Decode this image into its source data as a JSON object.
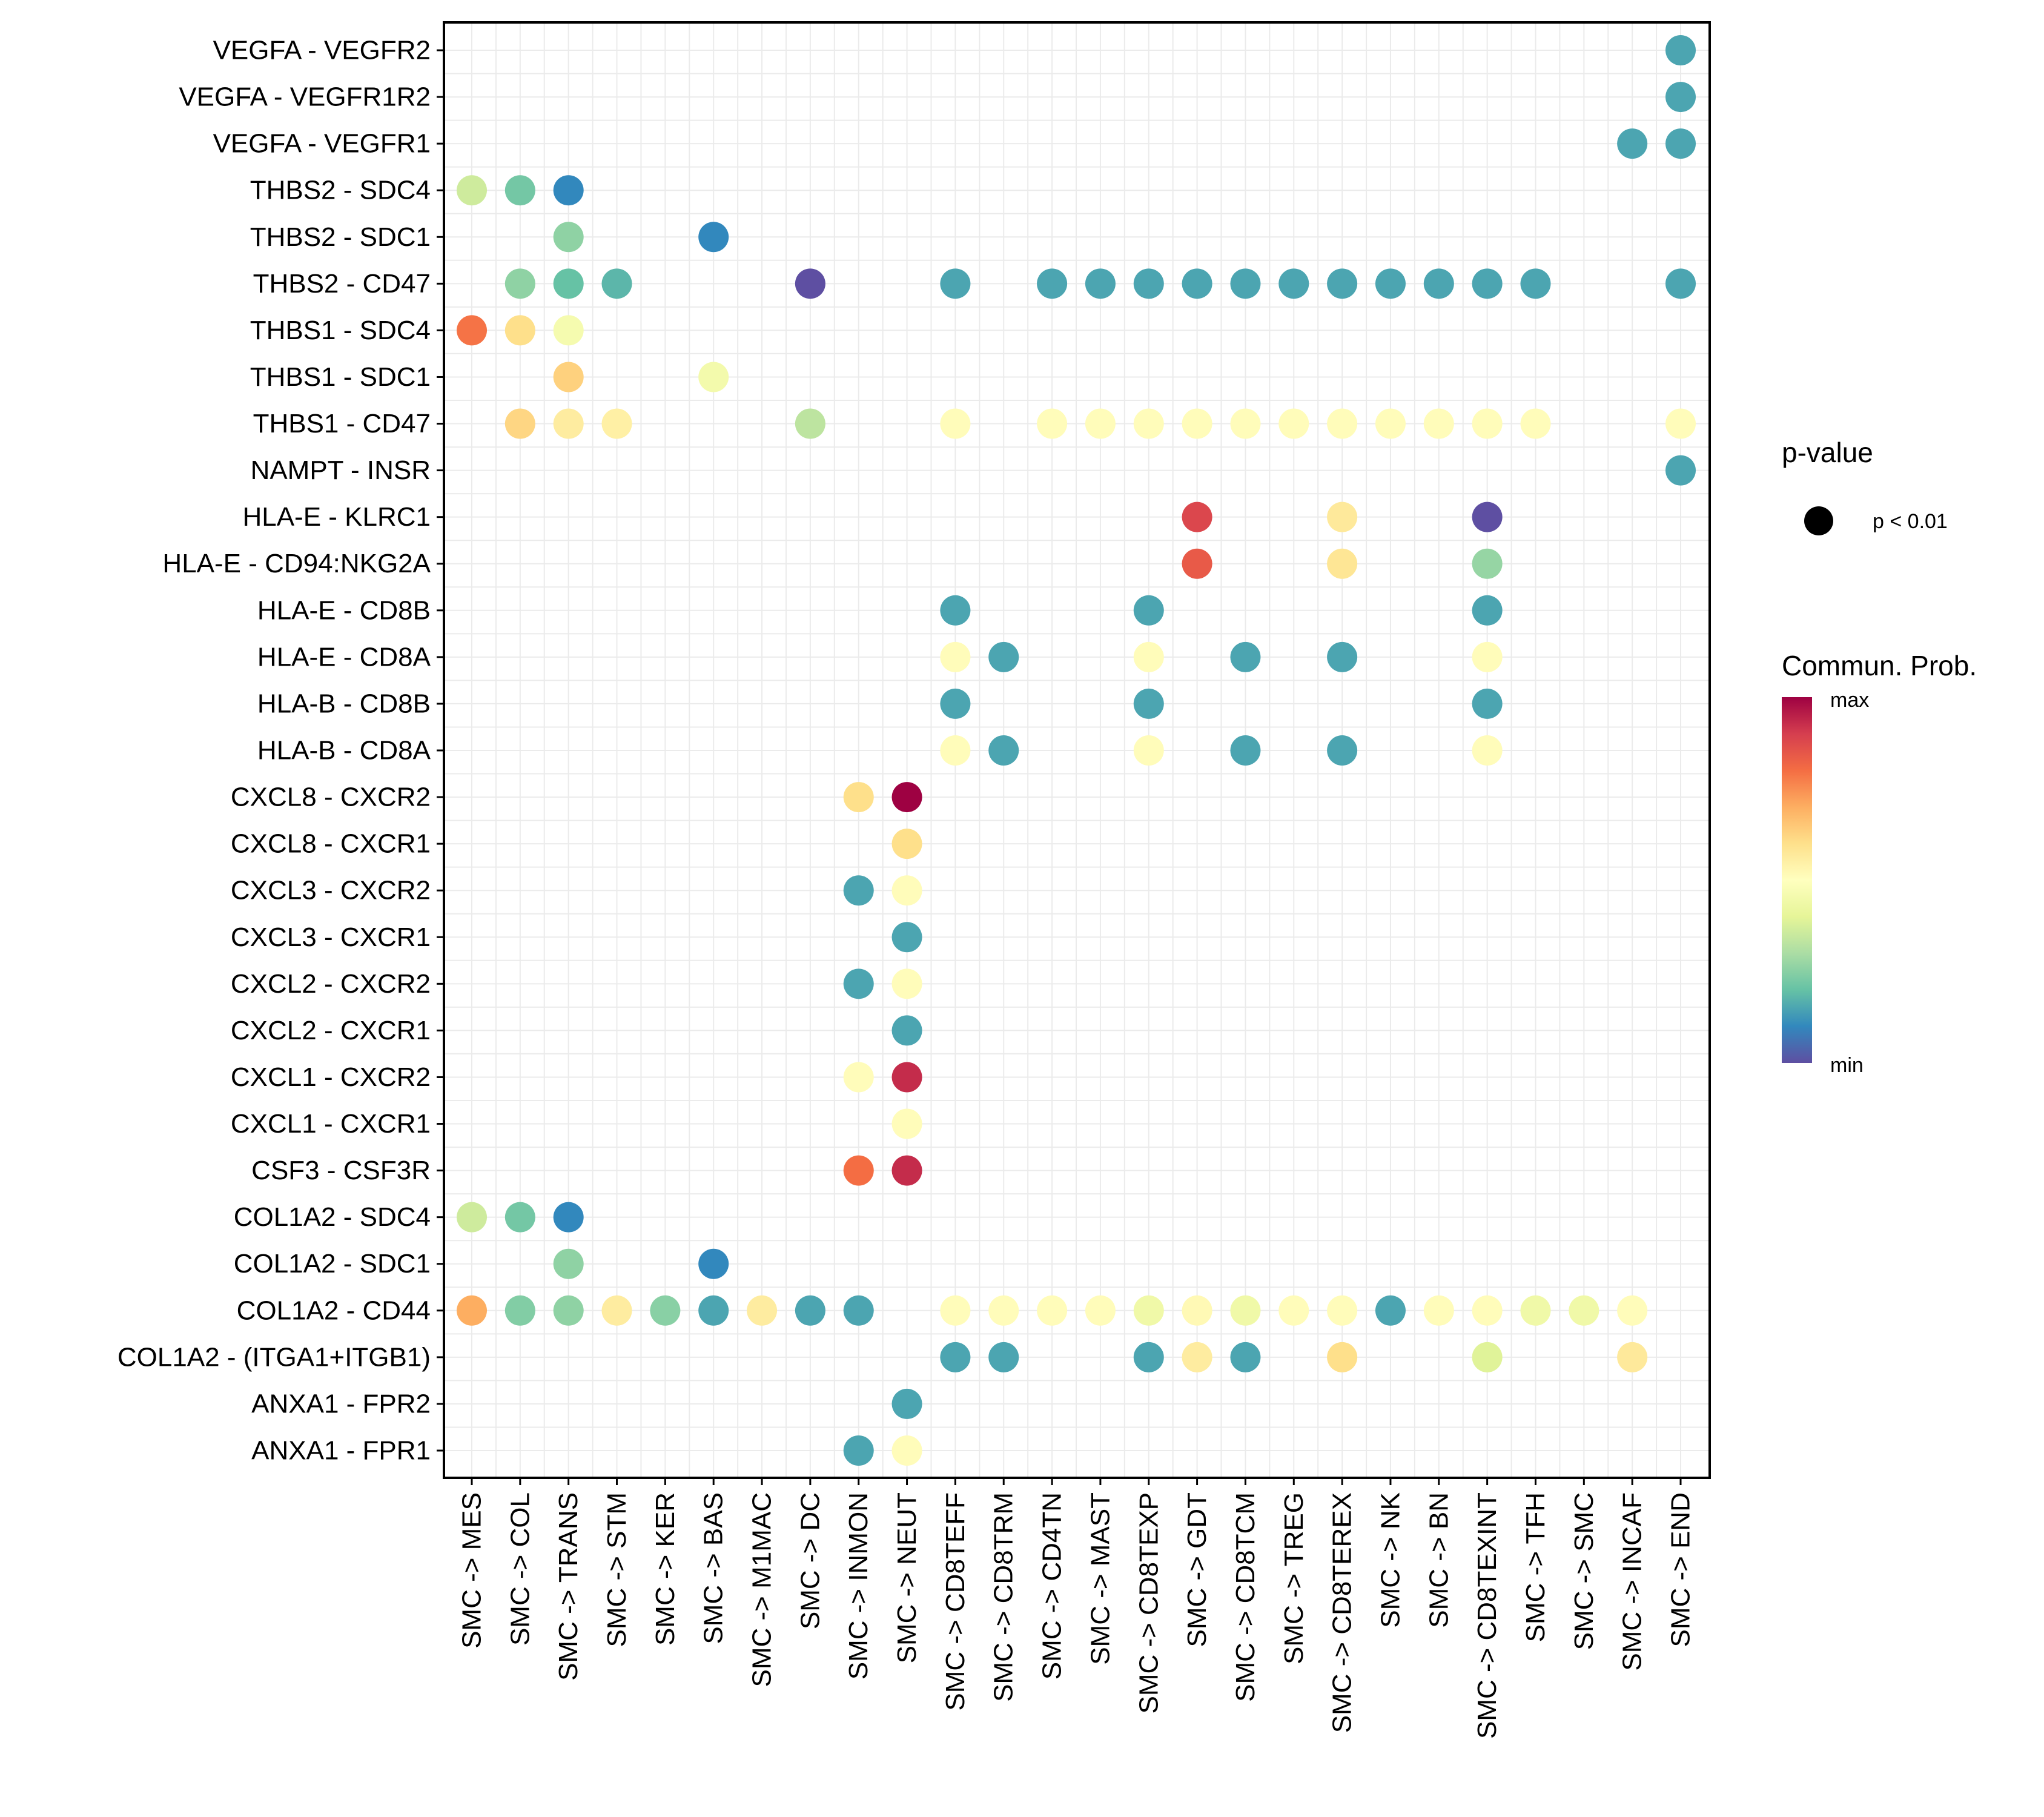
{
  "chart_data": {
    "type": "scatter",
    "subtype": "dot-matrix",
    "title": "",
    "xlabel": "",
    "ylabel": "",
    "grid": true,
    "x": [
      "SMC -> MES",
      "SMC -> COL",
      "SMC -> TRANS",
      "SMC -> STM",
      "SMC -> KER",
      "SMC -> BAS",
      "SMC -> M1MAC",
      "SMC -> DC",
      "SMC -> INMON",
      "SMC -> NEUT",
      "SMC -> CD8TEFF",
      "SMC -> CD8TRM",
      "SMC -> CD4TN",
      "SMC -> MAST",
      "SMC -> CD8TEXP",
      "SMC -> GDT",
      "SMC -> CD8TCM",
      "SMC -> TREG",
      "SMC -> CD8TEREX",
      "SMC -> NK",
      "SMC -> BN",
      "SMC -> CD8TEXINT",
      "SMC -> TFH",
      "SMC -> SMC",
      "SMC -> INCAF",
      "SMC -> END"
    ],
    "y": [
      "VEGFA - VEGFR2",
      "VEGFA - VEGFR1R2",
      "VEGFA - VEGFR1",
      "THBS2 - SDC4",
      "THBS2 - SDC1",
      "THBS2 - CD47",
      "THBS1 - SDC4",
      "THBS1 - SDC1",
      "THBS1 - CD47",
      "NAMPT - INSR",
      "HLA-E - KLRC1",
      "HLA-E - CD94:NKG2A",
      "HLA-E - CD8B",
      "HLA-E - CD8A",
      "HLA-B - CD8B",
      "HLA-B - CD8A",
      "CXCL8 - CXCR2",
      "CXCL8 - CXCR1",
      "CXCL3 - CXCR2",
      "CXCL3 - CXCR1",
      "CXCL2 - CXCR2",
      "CXCL2 - CXCR1",
      "CXCL1 - CXCR2",
      "CXCL1 - CXCR1",
      "CSF3 - CSF3R",
      "COL1A2 - SDC4",
      "COL1A2 - SDC1",
      "COL1A2 - CD44",
      "COL1A2 - (ITGA1+ITGB1)",
      "ANXA1 - FPR2",
      "ANXA1 - FPR1"
    ],
    "value_scale": "relative commun. prob. 0 = min, 1 = max",
    "points": [
      {
        "y": "VEGFA - VEGFR2",
        "x": "SMC -> END",
        "prob": 0.15
      },
      {
        "y": "VEGFA - VEGFR1R2",
        "x": "SMC -> END",
        "prob": 0.15
      },
      {
        "y": "VEGFA - VEGFR1",
        "x": "SMC -> INCAF",
        "prob": 0.15
      },
      {
        "y": "VEGFA - VEGFR1",
        "x": "SMC -> END",
        "prob": 0.15
      },
      {
        "y": "THBS2 - SDC4",
        "x": "SMC -> MES",
        "prob": 0.36
      },
      {
        "y": "THBS2 - SDC4",
        "x": "SMC -> COL",
        "prob": 0.22
      },
      {
        "y": "THBS2 - SDC4",
        "x": "SMC -> TRANS",
        "prob": 0.1
      },
      {
        "y": "THBS2 - SDC1",
        "x": "SMC -> TRANS",
        "prob": 0.26
      },
      {
        "y": "THBS2 - SDC1",
        "x": "SMC -> BAS",
        "prob": 0.1
      },
      {
        "y": "THBS2 - CD47",
        "x": "SMC -> COL",
        "prob": 0.26
      },
      {
        "y": "THBS2 - CD47",
        "x": "SMC -> TRANS",
        "prob": 0.2
      },
      {
        "y": "THBS2 - CD47",
        "x": "SMC -> STM",
        "prob": 0.18
      },
      {
        "y": "THBS2 - CD47",
        "x": "SMC -> DC",
        "prob": 0.0
      },
      {
        "y": "THBS2 - CD47",
        "x": "SMC -> CD8TEFF",
        "prob": 0.15
      },
      {
        "y": "THBS2 - CD47",
        "x": "SMC -> CD4TN",
        "prob": 0.15
      },
      {
        "y": "THBS2 - CD47",
        "x": "SMC -> MAST",
        "prob": 0.15
      },
      {
        "y": "THBS2 - CD47",
        "x": "SMC -> CD8TEXP",
        "prob": 0.15
      },
      {
        "y": "THBS2 - CD47",
        "x": "SMC -> GDT",
        "prob": 0.15
      },
      {
        "y": "THBS2 - CD47",
        "x": "SMC -> CD8TCM",
        "prob": 0.15
      },
      {
        "y": "THBS2 - CD47",
        "x": "SMC -> TREG",
        "prob": 0.15
      },
      {
        "y": "THBS2 - CD47",
        "x": "SMC -> CD8TEREX",
        "prob": 0.15
      },
      {
        "y": "THBS2 - CD47",
        "x": "SMC -> NK",
        "prob": 0.15
      },
      {
        "y": "THBS2 - CD47",
        "x": "SMC -> BN",
        "prob": 0.15
      },
      {
        "y": "THBS2 - CD47",
        "x": "SMC -> CD8TEXINT",
        "prob": 0.15
      },
      {
        "y": "THBS2 - CD47",
        "x": "SMC -> TFH",
        "prob": 0.15
      },
      {
        "y": "THBS2 - CD47",
        "x": "SMC -> END",
        "prob": 0.15
      },
      {
        "y": "THBS1 - SDC4",
        "x": "SMC -> MES",
        "prob": 0.79
      },
      {
        "y": "THBS1 - SDC4",
        "x": "SMC -> COL",
        "prob": 0.6
      },
      {
        "y": "THBS1 - SDC4",
        "x": "SMC -> TRANS",
        "prob": 0.46
      },
      {
        "y": "THBS1 - SDC1",
        "x": "SMC -> TRANS",
        "prob": 0.63
      },
      {
        "y": "THBS1 - SDC1",
        "x": "SMC -> BAS",
        "prob": 0.45
      },
      {
        "y": "THBS1 - CD47",
        "x": "SMC -> COL",
        "prob": 0.62
      },
      {
        "y": "THBS1 - CD47",
        "x": "SMC -> TRANS",
        "prob": 0.56
      },
      {
        "y": "THBS1 - CD47",
        "x": "SMC -> STM",
        "prob": 0.55
      },
      {
        "y": "THBS1 - CD47",
        "x": "SMC -> DC",
        "prob": 0.33
      },
      {
        "y": "THBS1 - CD47",
        "x": "SMC -> CD8TEFF",
        "prob": 0.51
      },
      {
        "y": "THBS1 - CD47",
        "x": "SMC -> CD4TN",
        "prob": 0.51
      },
      {
        "y": "THBS1 - CD47",
        "x": "SMC -> MAST",
        "prob": 0.51
      },
      {
        "y": "THBS1 - CD47",
        "x": "SMC -> CD8TEXP",
        "prob": 0.51
      },
      {
        "y": "THBS1 - CD47",
        "x": "SMC -> GDT",
        "prob": 0.51
      },
      {
        "y": "THBS1 - CD47",
        "x": "SMC -> CD8TCM",
        "prob": 0.51
      },
      {
        "y": "THBS1 - CD47",
        "x": "SMC -> TREG",
        "prob": 0.51
      },
      {
        "y": "THBS1 - CD47",
        "x": "SMC -> CD8TEREX",
        "prob": 0.51
      },
      {
        "y": "THBS1 - CD47",
        "x": "SMC -> NK",
        "prob": 0.51
      },
      {
        "y": "THBS1 - CD47",
        "x": "SMC -> BN",
        "prob": 0.51
      },
      {
        "y": "THBS1 - CD47",
        "x": "SMC -> CD8TEXINT",
        "prob": 0.51
      },
      {
        "y": "THBS1 - CD47",
        "x": "SMC -> TFH",
        "prob": 0.51
      },
      {
        "y": "THBS1 - CD47",
        "x": "SMC -> END",
        "prob": 0.51
      },
      {
        "y": "NAMPT - INSR",
        "x": "SMC -> END",
        "prob": 0.15
      },
      {
        "y": "HLA-E - KLRC1",
        "x": "SMC -> GDT",
        "prob": 0.88
      },
      {
        "y": "HLA-E - KLRC1",
        "x": "SMC -> CD8TEREX",
        "prob": 0.57
      },
      {
        "y": "HLA-E - KLRC1",
        "x": "SMC -> CD8TEXINT",
        "prob": 0.0
      },
      {
        "y": "HLA-E - CD94:NKG2A",
        "x": "SMC -> GDT",
        "prob": 0.84
      },
      {
        "y": "HLA-E - CD94:NKG2A",
        "x": "SMC -> CD8TEREX",
        "prob": 0.58
      },
      {
        "y": "HLA-E - CD94:NKG2A",
        "x": "SMC -> CD8TEXINT",
        "prob": 0.27
      },
      {
        "y": "HLA-E - CD8B",
        "x": "SMC -> CD8TEFF",
        "prob": 0.15
      },
      {
        "y": "HLA-E - CD8B",
        "x": "SMC -> CD8TEXP",
        "prob": 0.15
      },
      {
        "y": "HLA-E - CD8B",
        "x": "SMC -> CD8TEXINT",
        "prob": 0.15
      },
      {
        "y": "HLA-E - CD8A",
        "x": "SMC -> CD8TEFF",
        "prob": 0.51
      },
      {
        "y": "HLA-E - CD8A",
        "x": "SMC -> CD8TRM",
        "prob": 0.15
      },
      {
        "y": "HLA-E - CD8A",
        "x": "SMC -> CD8TEXP",
        "prob": 0.51
      },
      {
        "y": "HLA-E - CD8A",
        "x": "SMC -> CD8TCM",
        "prob": 0.15
      },
      {
        "y": "HLA-E - CD8A",
        "x": "SMC -> CD8TEREX",
        "prob": 0.15
      },
      {
        "y": "HLA-E - CD8A",
        "x": "SMC -> CD8TEXINT",
        "prob": 0.51
      },
      {
        "y": "HLA-B - CD8B",
        "x": "SMC -> CD8TEFF",
        "prob": 0.15
      },
      {
        "y": "HLA-B - CD8B",
        "x": "SMC -> CD8TEXP",
        "prob": 0.15
      },
      {
        "y": "HLA-B - CD8B",
        "x": "SMC -> CD8TEXINT",
        "prob": 0.15
      },
      {
        "y": "HLA-B - CD8A",
        "x": "SMC -> CD8TEFF",
        "prob": 0.51
      },
      {
        "y": "HLA-B - CD8A",
        "x": "SMC -> CD8TRM",
        "prob": 0.15
      },
      {
        "y": "HLA-B - CD8A",
        "x": "SMC -> CD8TEXP",
        "prob": 0.51
      },
      {
        "y": "HLA-B - CD8A",
        "x": "SMC -> CD8TCM",
        "prob": 0.15
      },
      {
        "y": "HLA-B - CD8A",
        "x": "SMC -> CD8TEREX",
        "prob": 0.15
      },
      {
        "y": "HLA-B - CD8A",
        "x": "SMC -> CD8TEXINT",
        "prob": 0.51
      },
      {
        "y": "CXCL8 - CXCR2",
        "x": "SMC -> INMON",
        "prob": 0.6
      },
      {
        "y": "CXCL8 - CXCR2",
        "x": "SMC -> NEUT",
        "prob": 1.0
      },
      {
        "y": "CXCL8 - CXCR1",
        "x": "SMC -> NEUT",
        "prob": 0.6
      },
      {
        "y": "CXCL3 - CXCR2",
        "x": "SMC -> INMON",
        "prob": 0.15
      },
      {
        "y": "CXCL3 - CXCR2",
        "x": "SMC -> NEUT",
        "prob": 0.51
      },
      {
        "y": "CXCL3 - CXCR1",
        "x": "SMC -> NEUT",
        "prob": 0.15
      },
      {
        "y": "CXCL2 - CXCR2",
        "x": "SMC -> INMON",
        "prob": 0.15
      },
      {
        "y": "CXCL2 - CXCR2",
        "x": "SMC -> NEUT",
        "prob": 0.51
      },
      {
        "y": "CXCL2 - CXCR1",
        "x": "SMC -> NEUT",
        "prob": 0.15
      },
      {
        "y": "CXCL1 - CXCR2",
        "x": "SMC -> INMON",
        "prob": 0.51
      },
      {
        "y": "CXCL1 - CXCR2",
        "x": "SMC -> NEUT",
        "prob": 0.93
      },
      {
        "y": "CXCL1 - CXCR1",
        "x": "SMC -> NEUT",
        "prob": 0.51
      },
      {
        "y": "CSF3 - CSF3R",
        "x": "SMC -> INMON",
        "prob": 0.8
      },
      {
        "y": "CSF3 - CSF3R",
        "x": "SMC -> NEUT",
        "prob": 0.93
      },
      {
        "y": "COL1A2 - SDC4",
        "x": "SMC -> MES",
        "prob": 0.36
      },
      {
        "y": "COL1A2 - SDC4",
        "x": "SMC -> COL",
        "prob": 0.22
      },
      {
        "y": "COL1A2 - SDC4",
        "x": "SMC -> TRANS",
        "prob": 0.1
      },
      {
        "y": "COL1A2 - SDC1",
        "x": "SMC -> TRANS",
        "prob": 0.26
      },
      {
        "y": "COL1A2 - SDC1",
        "x": "SMC -> BAS",
        "prob": 0.1
      },
      {
        "y": "COL1A2 - CD44",
        "x": "SMC -> MES",
        "prob": 0.7
      },
      {
        "y": "COL1A2 - CD44",
        "x": "SMC -> COL",
        "prob": 0.24
      },
      {
        "y": "COL1A2 - CD44",
        "x": "SMC -> TRANS",
        "prob": 0.26
      },
      {
        "y": "COL1A2 - CD44",
        "x": "SMC -> STM",
        "prob": 0.56
      },
      {
        "y": "COL1A2 - CD44",
        "x": "SMC -> KER",
        "prob": 0.25
      },
      {
        "y": "COL1A2 - CD44",
        "x": "SMC -> BAS",
        "prob": 0.15
      },
      {
        "y": "COL1A2 - CD44",
        "x": "SMC -> M1MAC",
        "prob": 0.56
      },
      {
        "y": "COL1A2 - CD44",
        "x": "SMC -> DC",
        "prob": 0.15
      },
      {
        "y": "COL1A2 - CD44",
        "x": "SMC -> INMON",
        "prob": 0.15
      },
      {
        "y": "COL1A2 - CD44",
        "x": "SMC -> CD8TEFF",
        "prob": 0.51
      },
      {
        "y": "COL1A2 - CD44",
        "x": "SMC -> CD8TRM",
        "prob": 0.51
      },
      {
        "y": "COL1A2 - CD44",
        "x": "SMC -> CD4TN",
        "prob": 0.51
      },
      {
        "y": "COL1A2 - CD44",
        "x": "SMC -> MAST",
        "prob": 0.51
      },
      {
        "y": "COL1A2 - CD44",
        "x": "SMC -> CD8TEXP",
        "prob": 0.44
      },
      {
        "y": "COL1A2 - CD44",
        "x": "SMC -> GDT",
        "prob": 0.52
      },
      {
        "y": "COL1A2 - CD44",
        "x": "SMC -> CD8TCM",
        "prob": 0.44
      },
      {
        "y": "COL1A2 - CD44",
        "x": "SMC -> TREG",
        "prob": 0.51
      },
      {
        "y": "COL1A2 - CD44",
        "x": "SMC -> CD8TEREX",
        "prob": 0.51
      },
      {
        "y": "COL1A2 - CD44",
        "x": "SMC -> NK",
        "prob": 0.15
      },
      {
        "y": "COL1A2 - CD44",
        "x": "SMC -> BN",
        "prob": 0.51
      },
      {
        "y": "COL1A2 - CD44",
        "x": "SMC -> CD8TEXINT",
        "prob": 0.51
      },
      {
        "y": "COL1A2 - CD44",
        "x": "SMC -> TFH",
        "prob": 0.44
      },
      {
        "y": "COL1A2 - CD44",
        "x": "SMC -> SMC",
        "prob": 0.44
      },
      {
        "y": "COL1A2 - CD44",
        "x": "SMC -> INCAF",
        "prob": 0.51
      },
      {
        "y": "COL1A2 - (ITGA1+ITGB1)",
        "x": "SMC -> CD8TEFF",
        "prob": 0.15
      },
      {
        "y": "COL1A2 - (ITGA1+ITGB1)",
        "x": "SMC -> CD8TRM",
        "prob": 0.15
      },
      {
        "y": "COL1A2 - (ITGA1+ITGB1)",
        "x": "SMC -> CD8TEXP",
        "prob": 0.15
      },
      {
        "y": "COL1A2 - (ITGA1+ITGB1)",
        "x": "SMC -> GDT",
        "prob": 0.56
      },
      {
        "y": "COL1A2 - (ITGA1+ITGB1)",
        "x": "SMC -> CD8TCM",
        "prob": 0.15
      },
      {
        "y": "COL1A2 - (ITGA1+ITGB1)",
        "x": "SMC -> CD8TEREX",
        "prob": 0.6
      },
      {
        "y": "COL1A2 - (ITGA1+ITGB1)",
        "x": "SMC -> CD8TEXINT",
        "prob": 0.39
      },
      {
        "y": "COL1A2 - (ITGA1+ITGB1)",
        "x": "SMC -> INCAF",
        "prob": 0.57
      },
      {
        "y": "ANXA1 - FPR2",
        "x": "SMC -> NEUT",
        "prob": 0.15
      },
      {
        "y": "ANXA1 - FPR1",
        "x": "SMC -> INMON",
        "prob": 0.15
      },
      {
        "y": "ANXA1 - FPR1",
        "x": "SMC -> NEUT",
        "prob": 0.51
      }
    ],
    "legend": {
      "placement": "right",
      "pvalue": {
        "title": "p-value",
        "entries": [
          "p < 0.01"
        ]
      },
      "color": {
        "title": "Commun. Prob.",
        "max_label": "max",
        "min_label": "min",
        "palette": [
          "#5E4FA2",
          "#3288BD",
          "#66C2A5",
          "#ABDDA4",
          "#E6F598",
          "#FFFFBF",
          "#FEE08B",
          "#FDAE61",
          "#F46D43",
          "#D53E4F",
          "#9E0142"
        ]
      }
    }
  }
}
